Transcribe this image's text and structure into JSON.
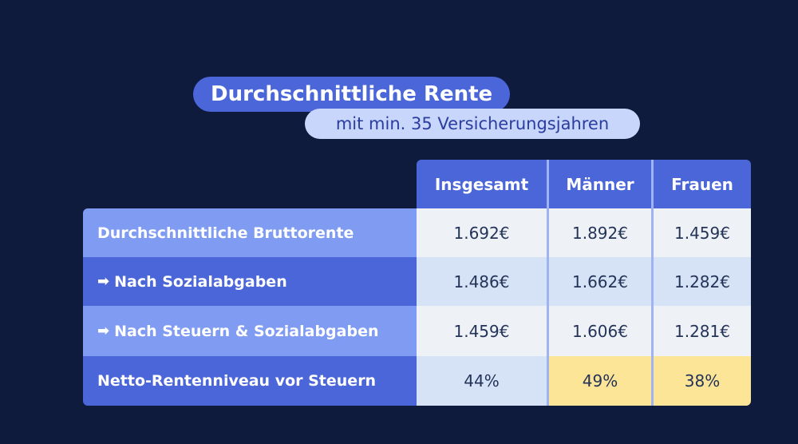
{
  "title": "Durchschnittliche Rente",
  "subtitle": "mit min. 35 Versicherungsjahren",
  "columns": [
    "Insgesamt",
    "Männer",
    "Frauen"
  ],
  "rows": [
    {
      "label": "Durchschnittliche Bruttorente",
      "values": [
        "1.692€",
        "1.892€",
        "1.459€"
      ]
    },
    {
      "label": "Nach Sozialabgaben",
      "arrow": "➡",
      "values": [
        "1.486€",
        "1.662€",
        "1.282€"
      ]
    },
    {
      "label": "Nach Steuern & Sozialabgaben",
      "arrow": "➡",
      "values": [
        "1.459€",
        "1.606€",
        "1.281€"
      ]
    },
    {
      "label": "Netto-Rentenniveau vor Steuern",
      "values": [
        "44%",
        "49%",
        "38%"
      ]
    }
  ],
  "colors": {
    "background": "#0e1b3d",
    "header": "#4b66d9",
    "label_light": "#7f9cf2",
    "label_dark": "#4b66d9",
    "cell_light": "#eef2f7",
    "cell_blue": "#d6e2f5",
    "highlight": "#fde597"
  }
}
